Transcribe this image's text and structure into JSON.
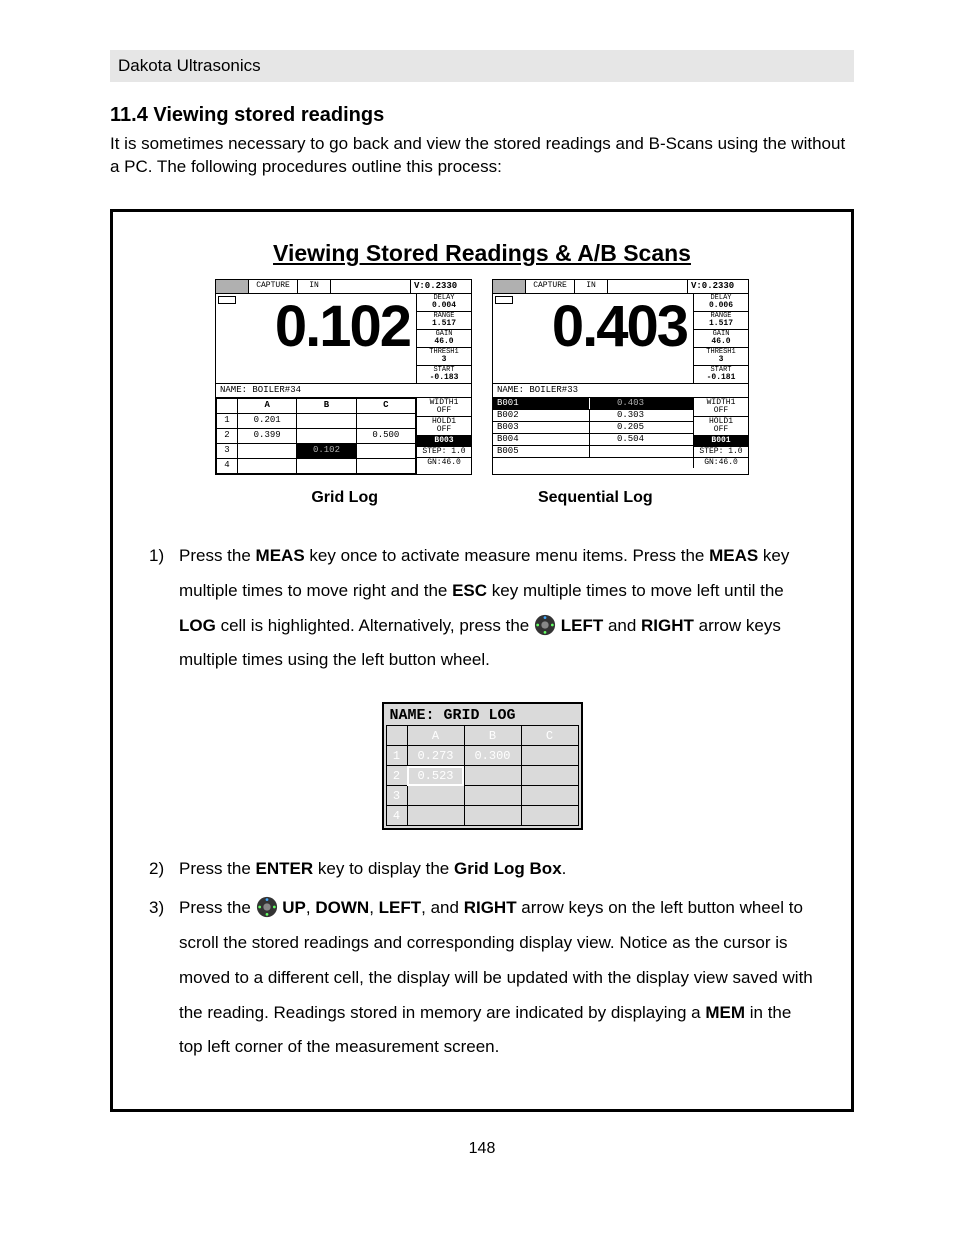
{
  "header": {
    "brand": "Dakota Ultrasonics"
  },
  "section": {
    "number": "11.4",
    "title": "Viewing stored readings",
    "intro": "It is sometimes necessary to go back and view the stored readings and B-Scans using the             without a PC.  The following procedures outline this process:"
  },
  "box": {
    "title": "Viewing Stored Readings & A/B Scans",
    "caption_left": "Grid Log",
    "caption_right": "Sequential Log"
  },
  "lcd_common": {
    "top": {
      "capture": "CAPTURE",
      "in": "IN",
      "v": "V:0.2330"
    },
    "side_labels": {
      "delay": "DELAY",
      "range": "RANGE",
      "gain": "GAIN",
      "thresh1": "THRESH1",
      "start": "START",
      "width1": "WIDTH1",
      "hold1": "HOLD1",
      "step": "STEP: 1.0",
      "gn": "GN:46.0"
    }
  },
  "lcd_left": {
    "big": "0.102",
    "side": {
      "delay": "0.004",
      "range": "1.517",
      "gain": "46.0",
      "thresh1": "3",
      "start": "-0.183",
      "width1": "OFF",
      "hold1": "OFF"
    },
    "name": "NAME: BOILER#34",
    "grid": {
      "cols": [
        "A",
        "B",
        "C"
      ],
      "rows": [
        [
          "1",
          "0.201",
          "",
          ""
        ],
        [
          "2",
          "0.399",
          "",
          "0.500"
        ],
        [
          "3",
          "",
          "0.102",
          ""
        ],
        [
          "4",
          "",
          "",
          ""
        ]
      ],
      "sel_cell": [
        2,
        1
      ],
      "dim_cell": [
        2,
        1
      ],
      "box_code": "B003"
    }
  },
  "lcd_right": {
    "big": "0.403",
    "side": {
      "delay": "0.006",
      "range": "1.517",
      "gain": "46.0",
      "thresh1": "3",
      "start": "-0.181",
      "width1": "OFF",
      "hold1": "OFF"
    },
    "name": "NAME: BOILER#33",
    "seq": [
      {
        "id": "B001",
        "v": "0.403",
        "sel": true,
        "dim": true
      },
      {
        "id": "B002",
        "v": "0.303"
      },
      {
        "id": "B003",
        "v": "0.205"
      },
      {
        "id": "B004",
        "v": "0.504"
      },
      {
        "id": "B005",
        "v": ""
      }
    ],
    "box_code": "B001"
  },
  "small_grid": {
    "name": "NAME: GRID LOG",
    "cols": [
      "A",
      "B",
      "C"
    ],
    "rows": [
      [
        "1",
        "0.273",
        "0.300",
        ""
      ],
      [
        "2",
        "0.523",
        "",
        ""
      ],
      [
        "3",
        "",
        "",
        ""
      ],
      [
        "4",
        "",
        "",
        ""
      ]
    ],
    "cursor": [
      1,
      0
    ]
  },
  "steps": {
    "s1_a": "Press the ",
    "s1_b": " key once to activate measure menu items.  Press the ",
    "s1_c": " key multiple times to move right and the ",
    "s1_d": " key multiple times to move left until the ",
    "s1_e": " cell is highlighted.  Alternatively, press the ",
    "s1_f": " and ",
    "s1_g": " arrow keys multiple times using the left button wheel.",
    "MEAS": "MEAS",
    "ESC": "ESC",
    "LOG": "LOG",
    "LEFT": "LEFT",
    "RIGHT": "RIGHT",
    "s2_a": "Press the ",
    "s2_b": " key to display the ",
    "s2_c": ".",
    "ENTER": "ENTER",
    "GLB": "Grid Log Box",
    "s3_a": "Press the ",
    "s3_b": " ",
    "s3_c": ", ",
    "s3_d": ", ",
    "s3_e": ", and ",
    "s3_f": " arrow keys on the left button wheel to scroll the stored readings and corresponding display view.  Notice as the cursor is moved to a different cell, the display will be updated with the display view saved with the reading.  Readings stored in memory are indicated by displaying a ",
    "s3_g": " in the top left corner of the measurement screen.",
    "UP": "UP",
    "DOWN": "DOWN",
    "MEM": "MEM"
  },
  "page_number": "148"
}
